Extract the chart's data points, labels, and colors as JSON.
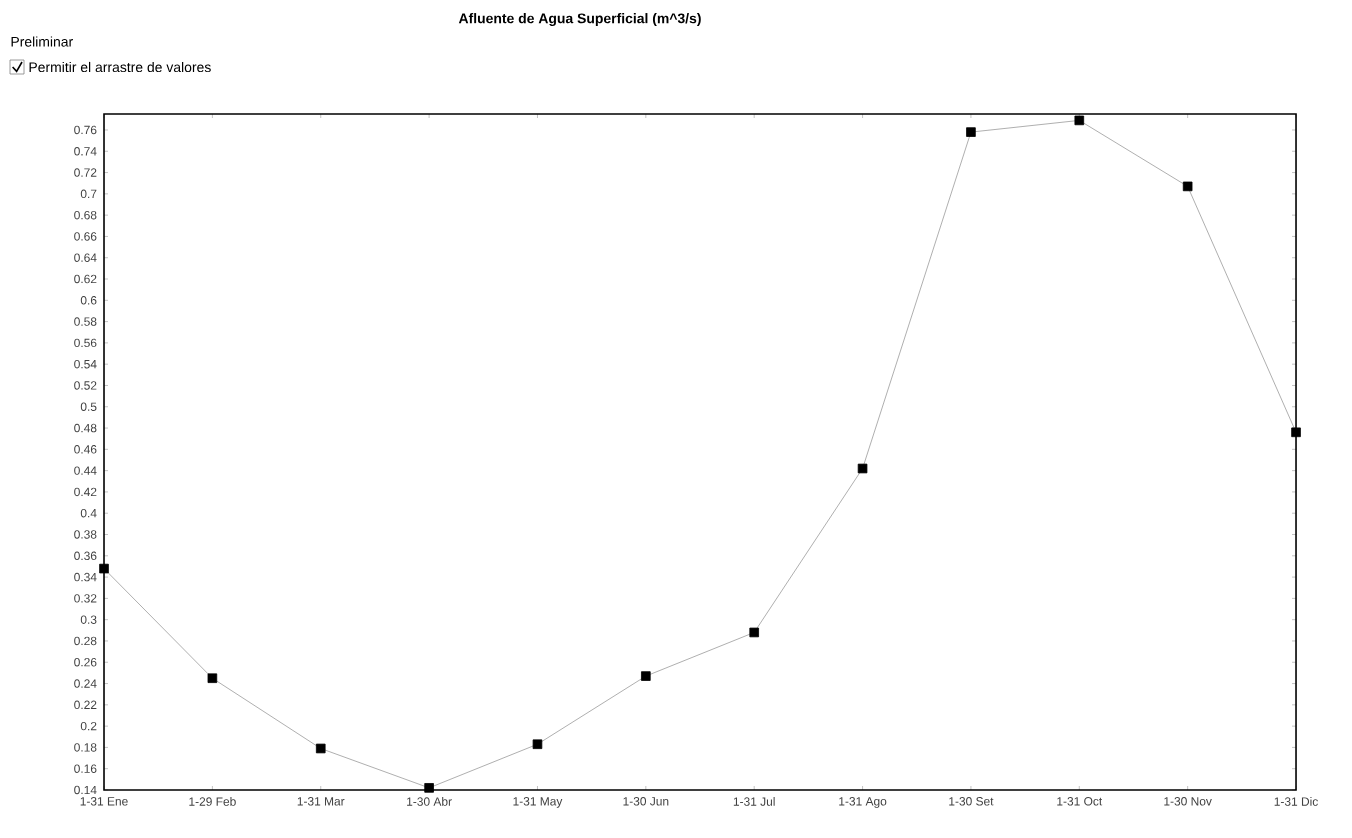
{
  "chart_data": {
    "type": "line",
    "title": "Afluente de Agua Superficial (m^3/s)",
    "subtitle": "Preliminar",
    "annotations": [
      "Permitir el arrastre de valores"
    ],
    "categories": [
      "1-31 Ene",
      "1-29 Feb",
      "1-31 Mar",
      "1-30 Abr",
      "1-31 May",
      "1-30 Jun",
      "1-31 Jul",
      "1-31 Ago",
      "1-30 Set",
      "1-31 Oct",
      "1-30 Nov",
      "1-31 Dic"
    ],
    "series": [
      {
        "color": "#9a9a9a",
        "values": [
          0.348,
          0.245,
          0.179,
          0.142,
          0.183,
          0.247,
          0.288,
          0.442,
          0.758,
          0.769,
          0.707,
          0.476
        ]
      }
    ],
    "ylim": [
      0.14,
      0.775
    ],
    "yticks": [
      0.14,
      0.16,
      0.18,
      0.2,
      0.22,
      0.24,
      0.26,
      0.28,
      0.3,
      0.32,
      0.34,
      0.36,
      0.38,
      0.4,
      0.42,
      0.44,
      0.46,
      0.48,
      0.5,
      0.52,
      0.54,
      0.56,
      0.58,
      0.6,
      0.62,
      0.64,
      0.66,
      0.68,
      0.7,
      0.72,
      0.74,
      0.76
    ],
    "marker": "square",
    "line_style": "solid",
    "grid": false
  }
}
